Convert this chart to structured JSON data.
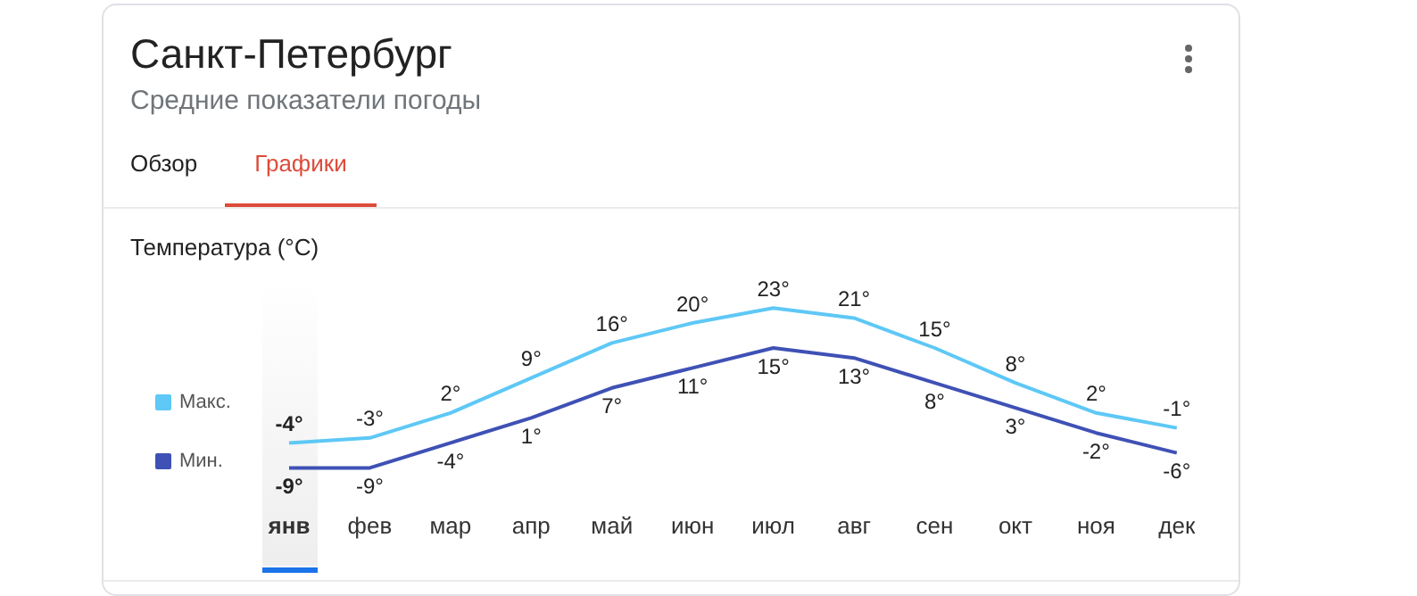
{
  "chart_data": {
    "type": "line",
    "title": "Санкт-Петербург",
    "subtitle": "Средние показатели погоды",
    "annotations": [
      "Обзор",
      "Графики",
      "Температура (°C)"
    ],
    "categories": [
      "янв",
      "фев",
      "мар",
      "апр",
      "май",
      "июн",
      "июл",
      "авг",
      "сен",
      "окт",
      "ноя",
      "дек"
    ],
    "series": [
      {
        "name": "Макс.",
        "color": "#5ec8f6",
        "values": [
          -4,
          -3,
          2,
          9,
          16,
          20,
          23,
          21,
          15,
          8,
          2,
          -1
        ],
        "value_labels": [
          "-4°",
          "-3°",
          "2°",
          "9°",
          "16°",
          "20°",
          "23°",
          "21°",
          "15°",
          "8°",
          "2°",
          "-1°"
        ]
      },
      {
        "name": "Мин.",
        "color": "#3f51b5",
        "values": [
          -9,
          -9,
          -4,
          1,
          7,
          11,
          15,
          13,
          8,
          3,
          -2,
          -6
        ],
        "value_labels": [
          "-9°",
          "-9°",
          "-4°",
          "1°",
          "7°",
          "11°",
          "15°",
          "13°",
          "8°",
          "3°",
          "-2°",
          "-6°"
        ]
      }
    ],
    "legend": "left",
    "grid": false,
    "marker": "none",
    "line_style": "solid"
  }
}
